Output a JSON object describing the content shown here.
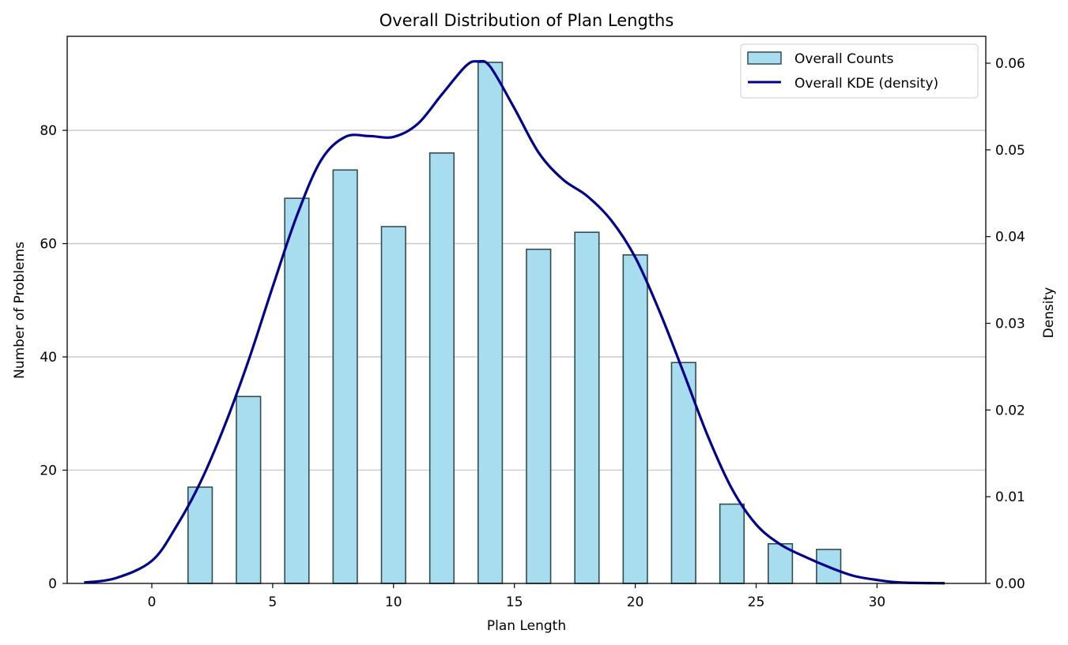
{
  "chart_data": {
    "type": "bar",
    "title": "Overall Distribution of Plan Lengths",
    "xlabel": "Plan Length",
    "ylabel": "Number of Problems",
    "y2label": "Density",
    "xlim": [
      -3.5,
      34.5
    ],
    "ylim": [
      0,
      96.6
    ],
    "y2lim": [
      0,
      0.0631
    ],
    "xticks": [
      0,
      5,
      10,
      15,
      20,
      25,
      30
    ],
    "yticks": [
      0,
      20,
      40,
      60,
      80
    ],
    "y2ticks": [
      "0.00",
      "0.01",
      "0.02",
      "0.03",
      "0.04",
      "0.05",
      "0.06"
    ],
    "grid": "y",
    "legend_position": "top-right",
    "series": [
      {
        "name": "Overall Counts",
        "kind": "bar",
        "color": "#a8dcef",
        "edgecolor": "#2f4f4f",
        "bar_width": 1.0,
        "x": [
          2,
          4,
          6,
          8,
          10,
          12,
          14,
          16,
          18,
          20,
          22,
          24,
          26,
          28
        ],
        "values": [
          17,
          33,
          68,
          73,
          63,
          76,
          92,
          59,
          62,
          58,
          39,
          14,
          7,
          6
        ]
      },
      {
        "name": "Overall KDE (density)",
        "kind": "line",
        "axis": "right",
        "color": "#00008b",
        "x": [
          -2.8,
          -1.5,
          0,
          1,
          2,
          3,
          4,
          5,
          6,
          7,
          8,
          9,
          10,
          11,
          12,
          13,
          13.5,
          14,
          15,
          16,
          17,
          18,
          19,
          20,
          21,
          22,
          23,
          24,
          25,
          26,
          27,
          28,
          29,
          30,
          31,
          32.8
        ],
        "values": [
          0.0001,
          0.0006,
          0.0026,
          0.0065,
          0.0116,
          0.0181,
          0.0257,
          0.0342,
          0.0424,
          0.0488,
          0.0515,
          0.0516,
          0.0515,
          0.053,
          0.0564,
          0.0597,
          0.0602,
          0.0596,
          0.0548,
          0.0497,
          0.0466,
          0.0447,
          0.0419,
          0.0376,
          0.0314,
          0.0243,
          0.017,
          0.0109,
          0.0068,
          0.0045,
          0.0031,
          0.0019,
          0.0009,
          0.0004,
          0.0001,
          2e-05
        ]
      }
    ]
  }
}
